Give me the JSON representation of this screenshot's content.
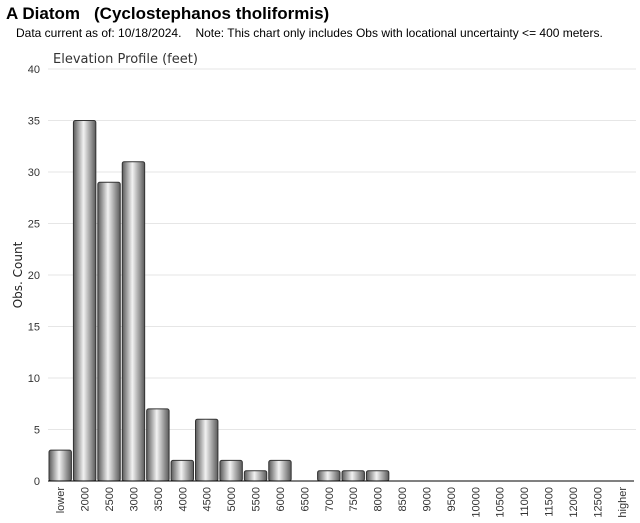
{
  "header": {
    "title_common": "A Diatom",
    "title_scientific": "(Cyclostephanos tholiformis)",
    "data_current": "Data current as of: 10/18/2024.",
    "note": "Note: This chart only includes Obs with locational uncertainty <= 400 meters."
  },
  "chart_data": {
    "type": "bar",
    "title": "Elevation Profile (feet)",
    "xlabel": "",
    "ylabel": "Obs. Count",
    "ylim": [
      0,
      40
    ],
    "yticks": [
      0,
      5,
      10,
      15,
      20,
      25,
      30,
      35,
      40
    ],
    "grid": true,
    "categories": [
      "lower",
      "2000",
      "2500",
      "3000",
      "3500",
      "4000",
      "4500",
      "5000",
      "5500",
      "6000",
      "6500",
      "7000",
      "7500",
      "8000",
      "8500",
      "9000",
      "9500",
      "10000",
      "10500",
      "11000",
      "11500",
      "12000",
      "12500",
      "higher"
    ],
    "values": [
      3,
      35,
      29,
      31,
      7,
      2,
      6,
      2,
      1,
      2,
      0,
      1,
      1,
      1,
      0,
      0,
      0,
      0,
      0,
      0,
      0,
      0,
      0,
      0
    ],
    "colors": {
      "bar_dark": "#5a5a5a",
      "bar_light": "#f2f2f2",
      "bar_stroke": "#333333",
      "grid": "#e6e6e6",
      "axis": "#000000"
    }
  }
}
